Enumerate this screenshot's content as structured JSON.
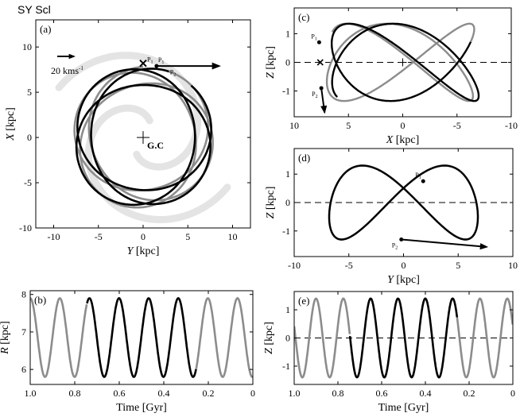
{
  "figure": {
    "title": "SY Scl",
    "colors": {
      "recent_orbit": "#000000",
      "past_orbit": "#8c8c8c",
      "spiral_arms": "#e4e4e4",
      "axes": "#000000"
    }
  },
  "chart_data": [
    {
      "id": "a",
      "panel_label": "(a)",
      "type": "line",
      "xlabel_var": "Y",
      "xlabel_unit": "[kpc]",
      "ylabel_var": "X",
      "ylabel_unit": "[kpc]",
      "xlim": [
        -12,
        12
      ],
      "ylim": [
        -10,
        13
      ],
      "xticks": [
        -10,
        -5,
        0,
        5,
        10
      ],
      "yticks": [
        -10,
        -5,
        0,
        5,
        10
      ],
      "annotations": {
        "gc_label": "G.C",
        "vel_label": "20 kms",
        "vel_sup": "-1",
        "p1": "P",
        "p1_sub": "1",
        "p2": "P",
        "p2_sub": "2"
      },
      "orbit": {
        "r_min": 5.8,
        "r_max": 7.9,
        "n_loops": 6,
        "sun_position": [
          0,
          8.2
        ]
      },
      "velocity_arrow": {
        "from": [
          1.5,
          7.9
        ],
        "to": [
          8.7,
          7.9
        ]
      }
    },
    {
      "id": "b",
      "panel_label": "(b)",
      "type": "line",
      "xlabel": "Time [Gyr]",
      "ylabel_var": "R",
      "ylabel_unit": "[kpc]",
      "xlim": [
        1.0,
        0
      ],
      "ylim": [
        5.6,
        8.1
      ],
      "xticks": [
        1.0,
        0.8,
        0.6,
        0.4,
        0.2,
        0
      ],
      "xtick_labels": [
        "1.0",
        "0.8",
        "0.6",
        "0.4",
        "0.2",
        "0"
      ],
      "yticks": [
        6,
        7,
        8
      ],
      "series": {
        "mean": 6.85,
        "amplitude": 1.05,
        "period_gyr": 0.133,
        "recent_gray_below_gyr": 0.255,
        "recent_start_gyr": 0.745
      }
    },
    {
      "id": "c",
      "panel_label": "(c)",
      "type": "line",
      "xlabel_var": "X",
      "xlabel_unit": "[kpc]",
      "ylabel_var": "Z",
      "ylabel_unit": "[kpc]",
      "xlim": [
        10,
        -10
      ],
      "ylim": [
        -1.9,
        1.9
      ],
      "xticks": [
        10,
        5,
        0,
        -5,
        -10
      ],
      "yticks": [
        -1,
        0,
        1
      ],
      "annotations": {
        "p1": "P",
        "p1_sub": "1",
        "p2": "P",
        "p2_sub": "2"
      }
    },
    {
      "id": "d",
      "panel_label": "(d)",
      "type": "line",
      "xlabel_var": "Y",
      "xlabel_unit": "[kpc]",
      "ylabel_var": "Z",
      "ylabel_unit": "[kpc]",
      "xlim": [
        -10,
        10
      ],
      "ylim": [
        -1.9,
        1.9
      ],
      "xticks": [
        -10,
        -5,
        0,
        5,
        10
      ],
      "yticks": [
        -1,
        0,
        1
      ],
      "annotations": {
        "p1": "P",
        "p1_sub": "1",
        "p2": "P",
        "p2_sub": "2"
      }
    },
    {
      "id": "e",
      "panel_label": "(e)",
      "type": "line",
      "xlabel": "Time [Gyr]",
      "ylabel_var": "Z",
      "ylabel_unit": "[kpc]",
      "xlim": [
        1.0,
        0
      ],
      "ylim": [
        -1.65,
        1.65
      ],
      "xticks": [
        1.0,
        0.8,
        0.6,
        0.4,
        0.2,
        0
      ],
      "xtick_labels": [
        "1.0",
        "0.8",
        "0.6",
        "0.4",
        "0.2",
        "0"
      ],
      "yticks": [
        -1,
        0,
        1
      ],
      "series": {
        "amplitude": 1.4,
        "period_gyr": 0.125,
        "recent_gray_below_gyr": 0.255,
        "recent_start_gyr": 0.745
      }
    }
  ]
}
